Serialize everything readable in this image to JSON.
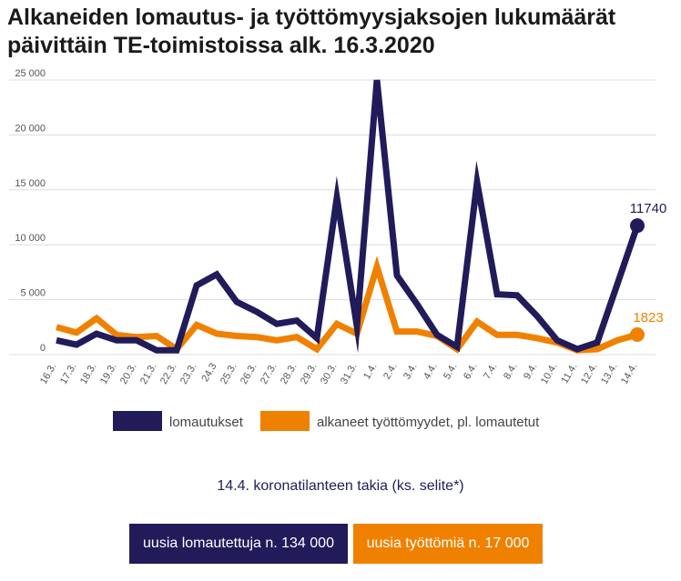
{
  "title_lines": [
    "Alkaneiden lomautus- ja työttömyysjaksojen lukumäärät",
    "päivittäin TE-toimistoissa alk. 16.3.2020"
  ],
  "subtitle": "14.4. koronatilanteen takia (ks. selite*)",
  "boxes": {
    "layoffs": "uusia lomautettuja n. 134 000",
    "unemployed": "uusia työttömiä n. 17 000"
  },
  "colors": {
    "layoffs": "#211b5a",
    "unemployed": "#f08100",
    "grid": "#dddddd",
    "axis_text": "#555555"
  },
  "chart_data": {
    "type": "line",
    "x": [
      "16.3.",
      "17.3.",
      "18.3.",
      "19.3.",
      "20.3.",
      "21.3.",
      "22.3.",
      "23.3.",
      "24.3",
      "25.3.",
      "26.3.",
      "27.3.",
      "28.3.",
      "29.3.",
      "30.3.",
      "31.3.",
      "1.4.",
      "2.4.",
      "3.4.",
      "4.4.",
      "5.4.",
      "6.4.",
      "7.4.",
      "8.4.",
      "9.4.",
      "10.4.",
      "11.4.",
      "12.4.",
      "13.4.",
      "14.4."
    ],
    "series": [
      {
        "name": "lomautukset",
        "color": "#211b5a",
        "values": [
          1300,
          900,
          1900,
          1300,
          1300,
          400,
          400,
          6300,
          7300,
          4800,
          3900,
          2800,
          3100,
          1500,
          14300,
          2600,
          25000,
          7200,
          4600,
          1800,
          700,
          15700,
          5500,
          5400,
          3500,
          1300,
          500,
          1100,
          6400,
          11740
        ]
      },
      {
        "name": "alkaneet työttömyydet, pl. lomautetut",
        "color": "#f08100",
        "values": [
          2500,
          2000,
          3300,
          1800,
          1600,
          1700,
          500,
          2700,
          1900,
          1700,
          1600,
          1300,
          1600,
          500,
          2800,
          1900,
          8000,
          2100,
          2100,
          1700,
          500,
          3000,
          1800,
          1800,
          1500,
          1100,
          400,
          500,
          1300,
          1823
        ]
      }
    ],
    "end_labels": [
      "11740",
      "1823"
    ],
    "y_ticks": [
      "0",
      "5 000",
      "10 000",
      "15 000",
      "20 000",
      "25 000"
    ],
    "ylim": [
      0,
      25000
    ],
    "grid": true,
    "legend_position": "bottom"
  }
}
